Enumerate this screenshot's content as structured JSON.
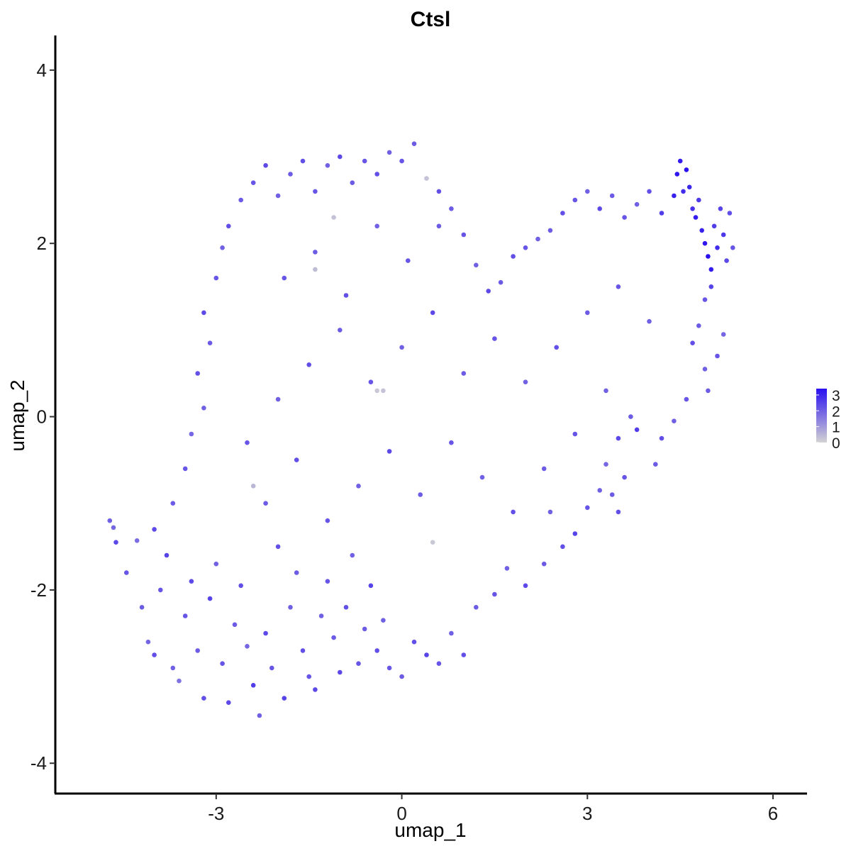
{
  "chart_data": {
    "type": "scatter",
    "title": "Ctsl",
    "xlabel": "umap_1",
    "ylabel": "umap_2",
    "xlim": [
      -5.6,
      6.55
    ],
    "ylim": [
      -4.35,
      4.4
    ],
    "xticks": [
      -3,
      0,
      3,
      6
    ],
    "yticks": [
      -4,
      -2,
      0,
      2,
      4
    ],
    "x_tick_labels": [
      "-3",
      "0",
      "3",
      "6"
    ],
    "y_tick_labels": [
      "-4",
      "-2",
      "0",
      "2",
      "4"
    ],
    "grid": false,
    "legend_position": "right",
    "color_scale": {
      "low_color": "#d3d3d3",
      "high_color": "#2a10f0",
      "min": 0,
      "max": 3.4,
      "ticks": [
        0,
        1,
        2,
        3
      ],
      "tick_labels": [
        "0",
        "1",
        "2",
        "3"
      ]
    },
    "expression_summary": "Points are UMAP embeddings of cells colored by Ctsl expression; most cells have moderate expression (~1.5-2.5), highest (~3) in the upper-right cluster near umap_1 4.5-5.2, umap_2 1.7-2.9.",
    "points": [
      [
        -4.72,
        -1.2,
        2.0
      ],
      [
        -4.66,
        -1.28,
        1.9
      ],
      [
        -4.62,
        -1.45,
        2.4
      ],
      [
        -4.45,
        -1.8,
        2.2
      ],
      [
        -4.28,
        -1.43,
        1.8
      ],
      [
        -4.2,
        -2.2,
        2.1
      ],
      [
        -4.1,
        -2.6,
        1.9
      ],
      [
        -4.0,
        -2.75,
        2.3
      ],
      [
        -3.9,
        -2.0,
        2.2
      ],
      [
        -3.8,
        -1.6,
        2.5
      ],
      [
        -3.7,
        -2.9,
        2.0
      ],
      [
        -3.6,
        -3.05,
        1.7
      ],
      [
        -3.5,
        -2.3,
        2.2
      ],
      [
        -3.4,
        -1.9,
        2.4
      ],
      [
        -3.3,
        -2.7,
        2.1
      ],
      [
        -3.2,
        -3.25,
        2.3
      ],
      [
        -3.1,
        -2.1,
        2.5
      ],
      [
        -3.0,
        -1.7,
        2.0
      ],
      [
        -2.9,
        -2.85,
        2.2
      ],
      [
        -2.8,
        -3.3,
        2.4
      ],
      [
        -2.7,
        -2.4,
        2.1
      ],
      [
        -2.6,
        -1.95,
        2.3
      ],
      [
        -2.5,
        -2.65,
        1.9
      ],
      [
        -2.4,
        -3.1,
        2.6
      ],
      [
        -2.3,
        -3.45,
        2.0
      ],
      [
        -2.2,
        -2.5,
        2.4
      ],
      [
        -2.1,
        -2.9,
        2.2
      ],
      [
        -2.0,
        -1.5,
        2.3
      ],
      [
        -1.9,
        -3.25,
        2.5
      ],
      [
        -1.8,
        -2.2,
        2.0
      ],
      [
        -1.7,
        -1.8,
        2.1
      ],
      [
        -1.6,
        -2.7,
        2.3
      ],
      [
        -1.5,
        -3.0,
        2.2
      ],
      [
        -1.4,
        -3.15,
        2.4
      ],
      [
        -1.3,
        -2.3,
        2.0
      ],
      [
        -1.2,
        -1.9,
        2.2
      ],
      [
        -1.1,
        -2.55,
        2.1
      ],
      [
        -1.0,
        -2.95,
        2.4
      ],
      [
        -0.9,
        -2.2,
        2.3
      ],
      [
        -0.8,
        -1.6,
        2.0
      ],
      [
        -0.7,
        -2.85,
        2.2
      ],
      [
        -0.6,
        -2.45,
        2.1
      ],
      [
        -0.5,
        -1.95,
        2.5
      ],
      [
        -0.4,
        -2.7,
        2.3
      ],
      [
        -0.3,
        -2.35,
        2.0
      ],
      [
        -0.2,
        -2.9,
        2.2
      ],
      [
        0.0,
        -3.0,
        2.1
      ],
      [
        0.2,
        -2.6,
        2.3
      ],
      [
        0.4,
        -2.75,
        2.5
      ],
      [
        0.5,
        -1.45,
        0.2
      ],
      [
        0.6,
        -2.85,
        2.2
      ],
      [
        0.8,
        -2.5,
        2.0
      ],
      [
        1.0,
        -2.75,
        2.3
      ],
      [
        1.2,
        -2.2,
        2.1
      ],
      [
        1.5,
        -2.05,
        2.2
      ],
      [
        1.7,
        -1.75,
        2.0
      ],
      [
        2.0,
        -1.95,
        2.4
      ],
      [
        2.3,
        -1.7,
        2.1
      ],
      [
        2.4,
        -1.1,
        2.0
      ],
      [
        2.6,
        -1.5,
        2.3
      ],
      [
        2.8,
        -1.35,
        2.5
      ],
      [
        3.0,
        -1.05,
        2.2
      ],
      [
        3.2,
        -0.85,
        2.0
      ],
      [
        3.4,
        -0.9,
        2.1
      ],
      [
        3.5,
        -1.1,
        2.3
      ],
      [
        3.6,
        -0.7,
        2.2
      ],
      [
        3.3,
        -0.55,
        1.9
      ],
      [
        3.5,
        -0.25,
        2.4
      ],
      [
        3.7,
        0.0,
        2.1
      ],
      [
        3.8,
        -0.15,
        2.6
      ],
      [
        -4.0,
        -1.3,
        2.4
      ],
      [
        -3.7,
        -1.0,
        2.1
      ],
      [
        -3.5,
        -0.6,
        2.2
      ],
      [
        -3.4,
        -0.2,
        1.9
      ],
      [
        -3.2,
        0.1,
        2.0
      ],
      [
        -3.3,
        0.5,
        2.3
      ],
      [
        -3.1,
        0.85,
        2.1
      ],
      [
        -3.2,
        1.2,
        2.4
      ],
      [
        -3.0,
        1.6,
        2.2
      ],
      [
        -2.9,
        1.95,
        2.0
      ],
      [
        -2.8,
        2.2,
        2.3
      ],
      [
        -2.6,
        2.5,
        2.1
      ],
      [
        -2.4,
        2.7,
        2.2
      ],
      [
        -2.2,
        2.9,
        2.4
      ],
      [
        -2.0,
        2.55,
        2.0
      ],
      [
        -1.8,
        2.8,
        2.1
      ],
      [
        -1.6,
        2.95,
        2.3
      ],
      [
        -1.4,
        2.6,
        2.2
      ],
      [
        -1.2,
        2.9,
        2.0
      ],
      [
        -1.0,
        3.0,
        2.4
      ],
      [
        -0.8,
        2.7,
        2.1
      ],
      [
        -0.6,
        2.95,
        2.2
      ],
      [
        -0.4,
        2.8,
        2.3
      ],
      [
        -0.2,
        3.05,
        2.0
      ],
      [
        0.0,
        2.95,
        2.2
      ],
      [
        0.2,
        3.15,
        2.1
      ],
      [
        0.4,
        2.75,
        0.3
      ],
      [
        0.6,
        2.6,
        2.3
      ],
      [
        0.8,
        2.4,
        2.1
      ],
      [
        1.0,
        2.1,
        2.2
      ],
      [
        1.2,
        1.75,
        2.0
      ],
      [
        1.4,
        1.45,
        2.4
      ],
      [
        1.6,
        1.55,
        2.1
      ],
      [
        1.8,
        1.85,
        2.3
      ],
      [
        2.0,
        1.95,
        2.2
      ],
      [
        2.2,
        2.05,
        2.0
      ],
      [
        2.4,
        2.15,
        2.1
      ],
      [
        2.6,
        2.35,
        2.3
      ],
      [
        2.8,
        2.5,
        2.2
      ],
      [
        3.0,
        2.6,
        2.0
      ],
      [
        3.2,
        2.4,
        2.4
      ],
      [
        3.4,
        2.55,
        2.1
      ],
      [
        3.6,
        2.3,
        2.2
      ],
      [
        3.8,
        2.45,
        2.0
      ],
      [
        4.0,
        2.6,
        2.3
      ],
      [
        4.2,
        2.35,
        2.6
      ],
      [
        4.4,
        2.55,
        3.1
      ],
      [
        4.45,
        2.8,
        3.3
      ],
      [
        4.5,
        2.95,
        3.2
      ],
      [
        4.55,
        2.6,
        2.9
      ],
      [
        4.6,
        2.85,
        3.4
      ],
      [
        4.65,
        2.65,
        3.0
      ],
      [
        4.7,
        2.4,
        2.8
      ],
      [
        4.75,
        2.3,
        3.2
      ],
      [
        4.8,
        2.5,
        2.7
      ],
      [
        4.85,
        2.15,
        3.1
      ],
      [
        4.9,
        2.0,
        3.3
      ],
      [
        4.95,
        1.85,
        3.4
      ],
      [
        5.0,
        1.7,
        3.2
      ],
      [
        5.05,
        2.2,
        2.6
      ],
      [
        5.1,
        1.95,
        2.9
      ],
      [
        5.15,
        2.4,
        2.5
      ],
      [
        5.2,
        2.1,
        2.7
      ],
      [
        5.25,
        1.8,
        2.4
      ],
      [
        5.3,
        2.35,
        2.3
      ],
      [
        5.35,
        1.95,
        2.2
      ],
      [
        5.0,
        1.5,
        2.5
      ],
      [
        4.9,
        1.35,
        2.2
      ],
      [
        4.8,
        1.05,
        2.1
      ],
      [
        4.7,
        0.85,
        2.3
      ],
      [
        4.9,
        0.55,
        2.0
      ],
      [
        5.1,
        0.7,
        2.2
      ],
      [
        5.2,
        0.95,
        1.9
      ],
      [
        4.95,
        0.3,
        2.1
      ],
      [
        4.6,
        0.2,
        2.2
      ],
      [
        4.4,
        -0.05,
        2.0
      ],
      [
        4.2,
        -0.25,
        2.3
      ],
      [
        4.1,
        -0.55,
        2.1
      ],
      [
        -2.5,
        -0.3,
        2.2
      ],
      [
        -2.0,
        0.2,
        2.0
      ],
      [
        -1.5,
        0.6,
        2.3
      ],
      [
        -1.0,
        1.0,
        2.1
      ],
      [
        -0.5,
        0.4,
        2.2
      ],
      [
        0.0,
        0.8,
        2.0
      ],
      [
        0.5,
        1.2,
        2.4
      ],
      [
        1.0,
        0.5,
        2.1
      ],
      [
        1.5,
        0.9,
        2.2
      ],
      [
        2.0,
        0.4,
        2.0
      ],
      [
        2.5,
        0.8,
        2.3
      ],
      [
        3.0,
        1.2,
        2.1
      ],
      [
        3.5,
        1.5,
        2.2
      ],
      [
        4.0,
        1.1,
        2.0
      ],
      [
        -2.2,
        -1.0,
        2.1
      ],
      [
        -1.7,
        -0.5,
        2.3
      ],
      [
        -1.2,
        -1.2,
        2.2
      ],
      [
        -0.7,
        -0.8,
        2.0
      ],
      [
        -0.2,
        -0.4,
        2.4
      ],
      [
        0.3,
        -0.9,
        2.1
      ],
      [
        0.8,
        -0.3,
        2.2
      ],
      [
        1.3,
        -0.7,
        2.0
      ],
      [
        1.8,
        -1.1,
        2.3
      ],
      [
        2.3,
        -0.6,
        2.1
      ],
      [
        2.8,
        -0.2,
        2.2
      ],
      [
        3.3,
        0.3,
        2.0
      ],
      [
        -1.9,
        1.6,
        2.2
      ],
      [
        -1.4,
        1.9,
        2.1
      ],
      [
        -0.9,
        1.4,
        2.3
      ],
      [
        -0.4,
        2.2,
        2.0
      ],
      [
        0.1,
        1.8,
        2.2
      ],
      [
        0.6,
        2.2,
        2.1
      ],
      [
        -0.4,
        0.3,
        0.2
      ],
      [
        -0.3,
        0.3,
        0.3
      ],
      [
        -1.4,
        1.7,
        0.4
      ],
      [
        -1.1,
        2.3,
        0.3
      ],
      [
        -2.4,
        -0.8,
        0.5
      ]
    ]
  }
}
